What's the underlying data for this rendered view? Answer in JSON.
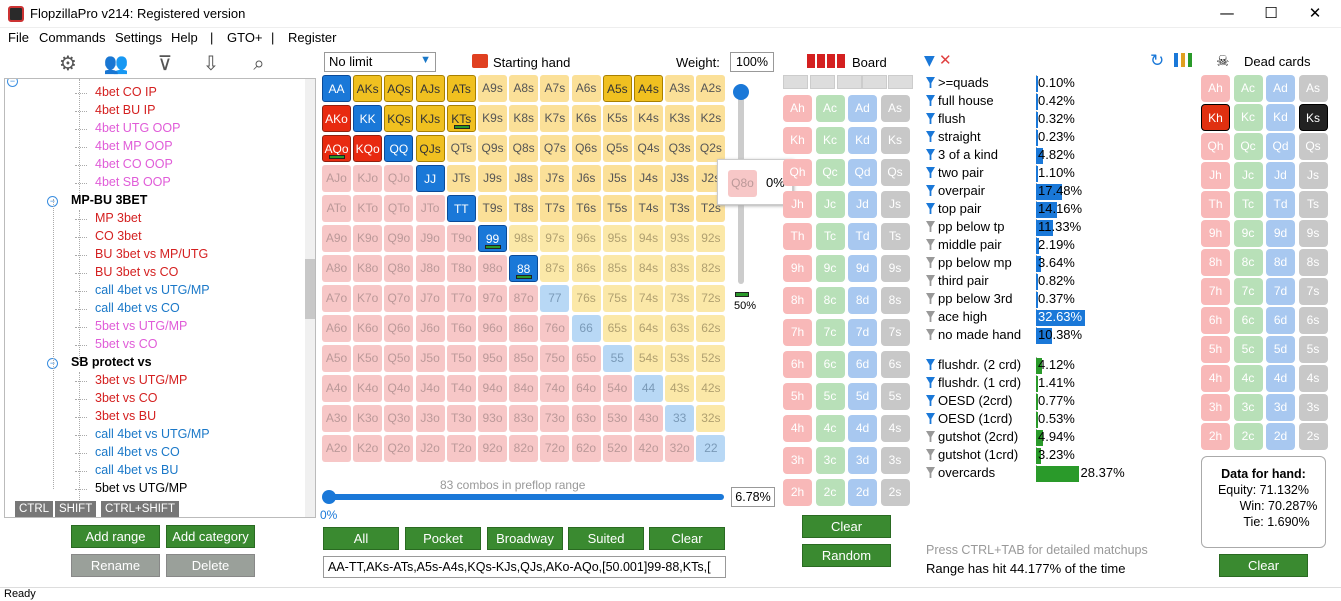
{
  "window": {
    "title": "FlopzillaPro v214: Registered version",
    "minimize": "—",
    "maximize": "☐",
    "close": "✕"
  },
  "menu": [
    "File",
    "Commands",
    "Settings",
    "Help",
    "|",
    "GTO+",
    "|",
    "Register"
  ],
  "tree": [
    {
      "label": "4bet CO IP",
      "color": "red"
    },
    {
      "label": "4bet BU IP",
      "color": "red"
    },
    {
      "label": "4bet UTG OOP",
      "color": "pink"
    },
    {
      "label": "4bet MP OOP",
      "color": "pink"
    },
    {
      "label": "4bet CO OOP",
      "color": "pink"
    },
    {
      "label": "4bet SB OOP",
      "color": "pink"
    },
    {
      "label": "MP-BU 3BET",
      "group": true
    },
    {
      "label": "MP 3bet",
      "color": "red"
    },
    {
      "label": "CO 3bet",
      "color": "red"
    },
    {
      "label": "BU 3bet vs MP/UTG",
      "color": "red"
    },
    {
      "label": "BU 3bet vs CO",
      "color": "red"
    },
    {
      "label": "call 4bet vs UTG/MP",
      "color": "blue"
    },
    {
      "label": "call 4bet vs CO",
      "color": "blue"
    },
    {
      "label": "5bet vs UTG/MP",
      "color": "pink"
    },
    {
      "label": "5bet vs CO",
      "color": "pink"
    },
    {
      "label": "SB protect vs",
      "group": true
    },
    {
      "label": "3bet vs UTG/MP",
      "color": "red"
    },
    {
      "label": "3bet vs CO",
      "color": "red"
    },
    {
      "label": "3bet vs BU",
      "color": "red"
    },
    {
      "label": "call 4bet vs UTG/MP",
      "color": "blue"
    },
    {
      "label": "call 4bet vs CO",
      "color": "blue"
    },
    {
      "label": "call 4bet vs BU",
      "color": "blue"
    },
    {
      "label": "5bet vs UTG/MP",
      "color": "blk"
    }
  ],
  "modkeys": [
    "CTRL",
    "SHIFT",
    "CTRL+SHIFT"
  ],
  "left_buttons": {
    "add_range": "Add range",
    "add_category": "Add category",
    "rename": "Rename",
    "delete": "Delete"
  },
  "range": {
    "game": "No limit",
    "starting_hand_label": "Starting hand",
    "weight_label": "Weight:",
    "weight": "100%",
    "combos_text": "83 combos in preflop range",
    "slider_min": "0%",
    "pct": "6.78%",
    "weight_slider_value": "50%",
    "popup_hand": "Q8o",
    "popup_pct": "0%",
    "range_string": "AA-TT,AKs-ATs,A5s-A4s,KQs-KJs,QJs,AKo-AQo,[50.001]99-88,KTs,[",
    "selected": [
      "AA",
      "AKs",
      "AQs",
      "AJs",
      "ATs",
      "A5s",
      "A4s",
      "AKo",
      "KK",
      "KQs",
      "KJs",
      "KTs",
      "AQo",
      "KQo",
      "QQ",
      "QJs",
      "JJ",
      "TT",
      "99",
      "88"
    ],
    "partial": [
      "KTs",
      "99",
      "88",
      "AQo"
    ]
  },
  "range_buttons": [
    "All",
    "Pocket",
    "Broadway",
    "Suited",
    "Clear"
  ],
  "board": {
    "label": "Board",
    "clear": "Clear",
    "random": "Random"
  },
  "stats": [
    {
      "name": ">=quads",
      "val": "0.10%",
      "pct": 0.1,
      "f": "b"
    },
    {
      "name": "full house",
      "val": "0.42%",
      "pct": 0.42,
      "f": "b"
    },
    {
      "name": "flush",
      "val": "0.32%",
      "pct": 0.32,
      "f": "b"
    },
    {
      "name": "straight",
      "val": "0.23%",
      "pct": 0.23,
      "f": "b"
    },
    {
      "name": "3 of a kind",
      "val": "4.82%",
      "pct": 4.82,
      "f": "b"
    },
    {
      "name": "two pair",
      "val": "1.10%",
      "pct": 1.1,
      "f": "b"
    },
    {
      "name": "overpair",
      "val": "17.48%",
      "pct": 17.48,
      "f": "b"
    },
    {
      "name": "top pair",
      "val": "14.16%",
      "pct": 14.16,
      "f": "b"
    },
    {
      "name": "pp below tp",
      "val": "11.33%",
      "pct": 11.33,
      "f": "g"
    },
    {
      "name": "middle pair",
      "val": "2.19%",
      "pct": 2.19,
      "f": "g"
    },
    {
      "name": "pp below mp",
      "val": "3.64%",
      "pct": 3.64,
      "f": "g"
    },
    {
      "name": "third pair",
      "val": "0.82%",
      "pct": 0.82,
      "f": "g"
    },
    {
      "name": "pp below 3rd",
      "val": "0.37%",
      "pct": 0.37,
      "f": "g"
    },
    {
      "name": "ace high",
      "val": "32.63%",
      "pct": 32.63,
      "f": "g"
    },
    {
      "name": "no made hand",
      "val": "10.38%",
      "pct": 10.38,
      "f": "g"
    },
    {
      "name": "flushdr. (2 crd)",
      "val": "4.12%",
      "pct": 4.12,
      "f": "b",
      "draw": true
    },
    {
      "name": "flushdr. (1 crd)",
      "val": "1.41%",
      "pct": 1.41,
      "f": "b",
      "draw": true
    },
    {
      "name": "OESD (2crd)",
      "val": "0.77%",
      "pct": 0.77,
      "f": "b",
      "draw": true
    },
    {
      "name": "OESD (1crd)",
      "val": "0.53%",
      "pct": 0.53,
      "f": "b",
      "draw": true
    },
    {
      "name": "gutshot (2crd)",
      "val": "4.94%",
      "pct": 4.94,
      "f": "g",
      "draw": true
    },
    {
      "name": "gutshot (1crd)",
      "val": "3.23%",
      "pct": 3.23,
      "f": "g",
      "draw": true
    },
    {
      "name": "overcards",
      "val": "28.37%",
      "pct": 28.37,
      "f": "g",
      "draw": true
    }
  ],
  "footer": {
    "hint": "Press CTRL+TAB for detailed matchups",
    "hit": "Range has hit 44.177% of the time"
  },
  "dead": {
    "label": "Dead cards",
    "clear": "Clear",
    "selected": [
      "Kh",
      "Ks"
    ],
    "data_title": "Data for hand:",
    "equity": "Equity: 71.132%",
    "win": "Win: 70.287%",
    "tie": "Tie: 1.690%"
  },
  "status": "Ready",
  "colors": {
    "accent": "#1a78d8",
    "green": "#3a8a30",
    "red": "#d42020"
  }
}
